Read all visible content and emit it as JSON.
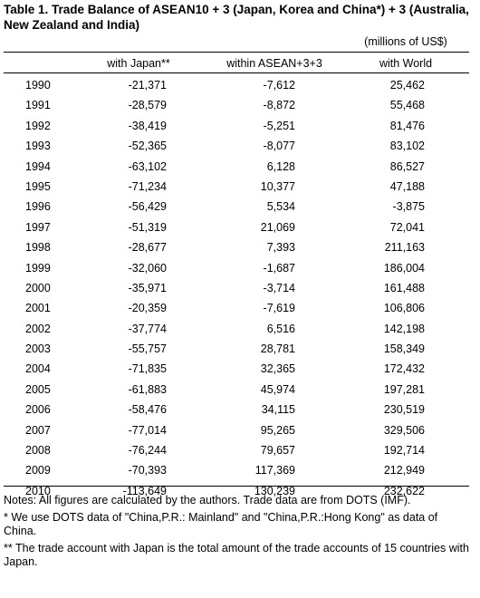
{
  "title": "Table 1. Trade Balance of ASEAN10 + 3 (Japan, Korea and China*) + 3 (Australia, New Zealand and India)",
  "units": "(millions of US$)",
  "columns": [
    "",
    "with Japan**",
    "within ASEAN+3+3",
    "with World"
  ],
  "rows": [
    {
      "year": "1990",
      "japan": "-21,371",
      "asean": "-7,612",
      "world": "25,462"
    },
    {
      "year": "1991",
      "japan": "-28,579",
      "asean": "-8,872",
      "world": "55,468"
    },
    {
      "year": "1992",
      "japan": "-38,419",
      "asean": "-5,251",
      "world": "81,476"
    },
    {
      "year": "1993",
      "japan": "-52,365",
      "asean": "-8,077",
      "world": "83,102"
    },
    {
      "year": "1994",
      "japan": "-63,102",
      "asean": "6,128",
      "world": "86,527"
    },
    {
      "year": "1995",
      "japan": "-71,234",
      "asean": "10,377",
      "world": "47,188"
    },
    {
      "year": "1996",
      "japan": "-56,429",
      "asean": "5,534",
      "world": "-3,875"
    },
    {
      "year": "1997",
      "japan": "-51,319",
      "asean": "21,069",
      "world": "72,041"
    },
    {
      "year": "1998",
      "japan": "-28,677",
      "asean": "7,393",
      "world": "211,163"
    },
    {
      "year": "1999",
      "japan": "-32,060",
      "asean": "-1,687",
      "world": "186,004"
    },
    {
      "year": "2000",
      "japan": "-35,971",
      "asean": "-3,714",
      "world": "161,488"
    },
    {
      "year": "2001",
      "japan": "-20,359",
      "asean": "-7,619",
      "world": "106,806"
    },
    {
      "year": "2002",
      "japan": "-37,774",
      "asean": "6,516",
      "world": "142,198"
    },
    {
      "year": "2003",
      "japan": "-55,757",
      "asean": "28,781",
      "world": "158,349"
    },
    {
      "year": "2004",
      "japan": "-71,835",
      "asean": "32,365",
      "world": "172,432"
    },
    {
      "year": "2005",
      "japan": "-61,883",
      "asean": "45,974",
      "world": "197,281"
    },
    {
      "year": "2006",
      "japan": "-58,476",
      "asean": "34,115",
      "world": "230,519"
    },
    {
      "year": "2007",
      "japan": "-77,014",
      "asean": "95,265",
      "world": "329,506"
    },
    {
      "year": "2008",
      "japan": "-76,244",
      "asean": "79,657",
      "world": "192,714"
    },
    {
      "year": "2009",
      "japan": "-70,393",
      "asean": "117,369",
      "world": "212,949"
    },
    {
      "year": "2010",
      "japan": "-113,649",
      "asean": "130,239",
      "world": "232,622"
    }
  ],
  "notes": [
    "Notes:  All figures are calculated by the authors. Trade data are from DOTS (IMF).",
    "* We use DOTS data of \"China,P.R.: Mainland\" and \"China,P.R.:Hong Kong\" as data of China.",
    "** The trade account with Japan is the total amount of the trade accounts of 15 countries with Japan."
  ]
}
